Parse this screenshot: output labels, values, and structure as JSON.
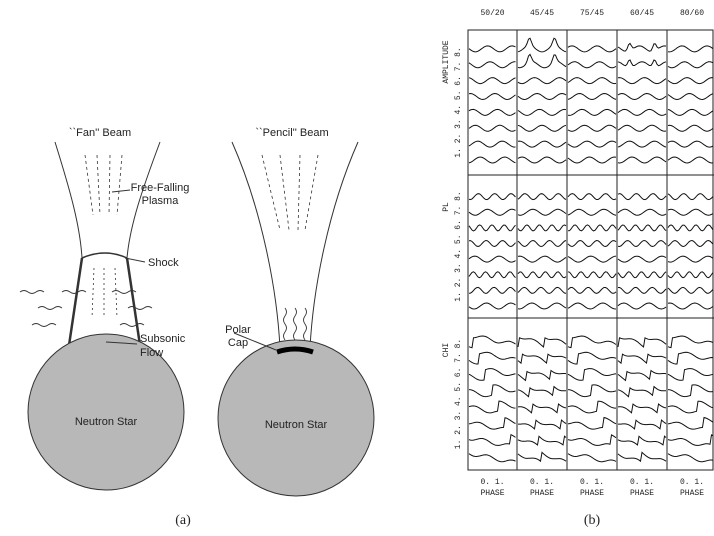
{
  "panel_a": {
    "fan_title": "``Fan'' Beam",
    "pencil_title": "``Pencil'' Beam",
    "plasma_label": [
      "Free-Falling",
      "Plasma"
    ],
    "shock_label": "Shock",
    "flow_label": [
      "Subsonic",
      "Flow"
    ],
    "cap_label": [
      "Polar",
      "Cap"
    ],
    "star_labels": [
      "Neutron Star",
      "Neutron Star"
    ],
    "caption": "(a)"
  },
  "panel_b": {
    "columns": [
      "50/20",
      "45/45",
      "75/45",
      "60/45",
      "80/60"
    ],
    "rows": [
      {
        "label": "AMPLITUDE",
        "ticks": "1. 2. 3. 4. 5. 6. 7. 8."
      },
      {
        "label": "PL",
        "ticks": "1. 2. 3. 4. 5. 6. 7. 8."
      },
      {
        "label": "CHI",
        "ticks": "1. 2. 3. 4. 5. 6. 7. 8."
      }
    ],
    "phase_ticks": "0.  1.",
    "x_label": "PHASE",
    "caption": "(b)"
  }
}
